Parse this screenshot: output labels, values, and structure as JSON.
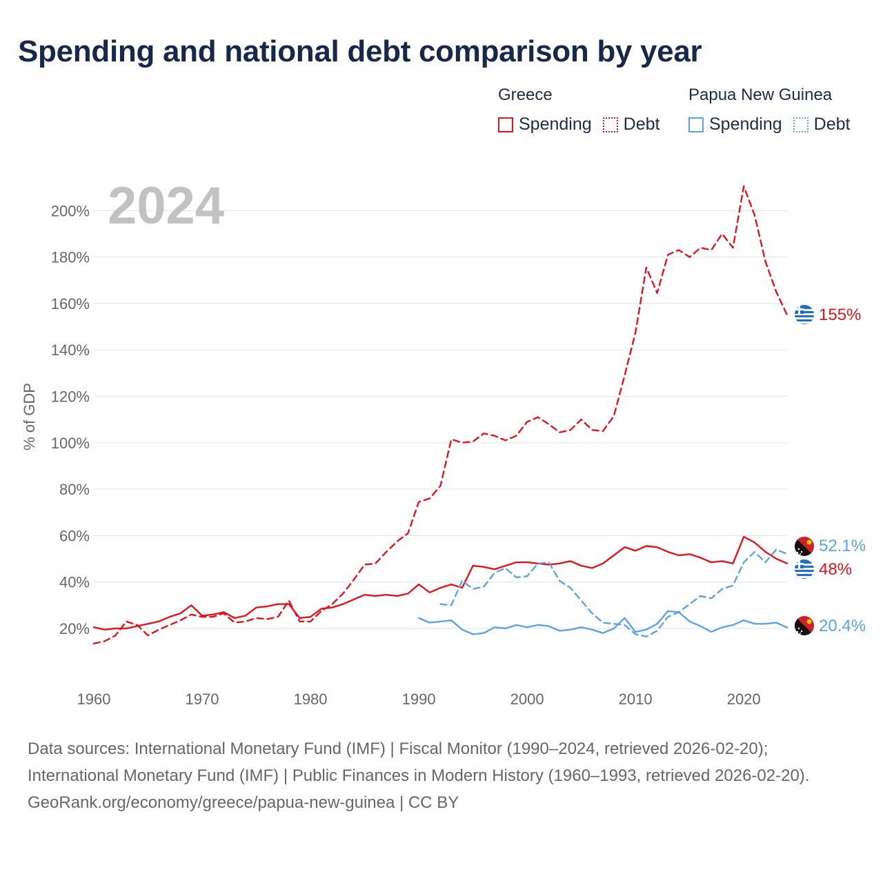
{
  "title": "Spending and national debt comparison by year",
  "legend": {
    "groups": [
      {
        "country": "Greece",
        "color": "#e8111a",
        "items": [
          {
            "label": "Spending",
            "style": "solid"
          },
          {
            "label": "Debt",
            "style": "dotted"
          }
        ]
      },
      {
        "country": "Papua New Guinea",
        "color": "#5aa3e4",
        "items": [
          {
            "label": "Spending",
            "style": "solid"
          },
          {
            "label": "Debt",
            "style": "dotted"
          }
        ]
      }
    ]
  },
  "chart_data": {
    "type": "line",
    "year_label": "2024",
    "ylabel": "% of GDP",
    "xlabel": "",
    "xlim": [
      1960,
      2024
    ],
    "ylim": [
      0,
      220
    ],
    "x_ticks": [
      1960,
      1970,
      1980,
      1990,
      2000,
      2010,
      2020
    ],
    "y_ticks": [
      20,
      40,
      60,
      80,
      100,
      120,
      140,
      160,
      180,
      200
    ],
    "y_tick_format": "%",
    "grid": true,
    "series": [
      {
        "name": "Greece Spending",
        "country": "Greece",
        "metric": "Spending",
        "color": "#e8111a",
        "dash": "solid",
        "end_label": "48%",
        "points": [
          [
            1960,
            20.5
          ],
          [
            1961,
            19.5
          ],
          [
            1962,
            20
          ],
          [
            1963,
            20
          ],
          [
            1964,
            21
          ],
          [
            1965,
            22
          ],
          [
            1966,
            23
          ],
          [
            1967,
            25
          ],
          [
            1968,
            26.5
          ],
          [
            1969,
            30
          ],
          [
            1970,
            25.5
          ],
          [
            1971,
            26
          ],
          [
            1972,
            27
          ],
          [
            1973,
            24.5
          ],
          [
            1974,
            25.5
          ],
          [
            1975,
            29
          ],
          [
            1976,
            29.5
          ],
          [
            1977,
            30.5
          ],
          [
            1978,
            30.5
          ],
          [
            1979,
            24.5
          ],
          [
            1980,
            25
          ],
          [
            1981,
            28.5
          ],
          [
            1982,
            29
          ],
          [
            1983,
            30.5
          ],
          [
            1984,
            32.5
          ],
          [
            1985,
            34.5
          ],
          [
            1986,
            34
          ],
          [
            1987,
            34.5
          ],
          [
            1988,
            34
          ],
          [
            1989,
            35
          ],
          [
            1990,
            39
          ],
          [
            1991,
            35.5
          ],
          [
            1992,
            37.5
          ],
          [
            1993,
            39
          ],
          [
            1994,
            37.5
          ],
          [
            1995,
            47
          ],
          [
            1996,
            46.5
          ],
          [
            1997,
            45.5
          ],
          [
            1998,
            47
          ],
          [
            1999,
            48.5
          ],
          [
            2000,
            48.5
          ],
          [
            2001,
            48
          ],
          [
            2002,
            47.5
          ],
          [
            2003,
            48
          ],
          [
            2004,
            49
          ],
          [
            2005,
            47
          ],
          [
            2006,
            46
          ],
          [
            2007,
            48
          ],
          [
            2008,
            51.5
          ],
          [
            2009,
            55
          ],
          [
            2010,
            53.5
          ],
          [
            2011,
            55.5
          ],
          [
            2012,
            55
          ],
          [
            2013,
            53
          ],
          [
            2014,
            51.5
          ],
          [
            2015,
            52
          ],
          [
            2016,
            50.5
          ],
          [
            2017,
            48.5
          ],
          [
            2018,
            49
          ],
          [
            2019,
            48
          ],
          [
            2020,
            59.5
          ],
          [
            2021,
            57
          ],
          [
            2022,
            53
          ],
          [
            2023,
            50
          ],
          [
            2024,
            48
          ]
        ]
      },
      {
        "name": "Greece Debt",
        "country": "Greece",
        "metric": "Debt",
        "color": "#e8111a",
        "dash": "dashed",
        "end_label": "155%",
        "points": [
          [
            1960,
            13.5
          ],
          [
            1961,
            14.5
          ],
          [
            1962,
            17
          ],
          [
            1963,
            23
          ],
          [
            1964,
            21.5
          ],
          [
            1965,
            17
          ],
          [
            1966,
            19.5
          ],
          [
            1967,
            21.5
          ],
          [
            1968,
            23.5
          ],
          [
            1969,
            26
          ],
          [
            1970,
            25
          ],
          [
            1971,
            25
          ],
          [
            1972,
            26.5
          ],
          [
            1973,
            22.5
          ],
          [
            1974,
            23
          ],
          [
            1975,
            24.5
          ],
          [
            1976,
            24
          ],
          [
            1977,
            25
          ],
          [
            1978,
            32
          ],
          [
            1979,
            23
          ],
          [
            1980,
            23
          ],
          [
            1981,
            27.5
          ],
          [
            1982,
            30.5
          ],
          [
            1983,
            35
          ],
          [
            1984,
            41
          ],
          [
            1985,
            47.5
          ],
          [
            1986,
            48
          ],
          [
            1987,
            53
          ],
          [
            1988,
            57.5
          ],
          [
            1989,
            61
          ],
          [
            1990,
            74.5
          ],
          [
            1991,
            76
          ],
          [
            1992,
            81.5
          ],
          [
            1993,
            101.5
          ],
          [
            1994,
            100
          ],
          [
            1995,
            100.5
          ],
          [
            1996,
            104
          ],
          [
            1997,
            103
          ],
          [
            1998,
            101
          ],
          [
            1999,
            103
          ],
          [
            2000,
            109
          ],
          [
            2001,
            111
          ],
          [
            2002,
            108
          ],
          [
            2003,
            104.5
          ],
          [
            2004,
            105.5
          ],
          [
            2005,
            110
          ],
          [
            2006,
            105.5
          ],
          [
            2007,
            105
          ],
          [
            2008,
            111.5
          ],
          [
            2009,
            129
          ],
          [
            2010,
            147.5
          ],
          [
            2011,
            175.5
          ],
          [
            2012,
            164.5
          ],
          [
            2013,
            181
          ],
          [
            2014,
            183
          ],
          [
            2015,
            180
          ],
          [
            2016,
            184
          ],
          [
            2017,
            183
          ],
          [
            2018,
            190
          ],
          [
            2019,
            184
          ],
          [
            2020,
            210.5
          ],
          [
            2021,
            198
          ],
          [
            2022,
            178
          ],
          [
            2023,
            165
          ],
          [
            2024,
            155
          ]
        ]
      },
      {
        "name": "Papua New Guinea Spending",
        "country": "Papua New Guinea",
        "metric": "Spending",
        "color": "#5aa3e4",
        "dash": "solid",
        "end_label": "20.4%",
        "points": [
          [
            1990,
            24.5
          ],
          [
            1991,
            22.5
          ],
          [
            1992,
            23
          ],
          [
            1993,
            23.5
          ],
          [
            1994,
            19.5
          ],
          [
            1995,
            17.5
          ],
          [
            1996,
            18
          ],
          [
            1997,
            20.5
          ],
          [
            1998,
            20
          ],
          [
            1999,
            21.5
          ],
          [
            2000,
            20.5
          ],
          [
            2001,
            21.5
          ],
          [
            2002,
            21
          ],
          [
            2003,
            19
          ],
          [
            2004,
            19.5
          ],
          [
            2005,
            20.5
          ],
          [
            2006,
            19.5
          ],
          [
            2007,
            18
          ],
          [
            2008,
            20
          ],
          [
            2009,
            24.5
          ],
          [
            2010,
            18.5
          ],
          [
            2011,
            19.5
          ],
          [
            2012,
            22
          ],
          [
            2013,
            27.5
          ],
          [
            2014,
            27
          ],
          [
            2015,
            23
          ],
          [
            2016,
            21
          ],
          [
            2017,
            18.5
          ],
          [
            2018,
            20.5
          ],
          [
            2019,
            21.5
          ],
          [
            2020,
            23.5
          ],
          [
            2021,
            22
          ],
          [
            2022,
            22
          ],
          [
            2023,
            22.5
          ],
          [
            2024,
            20.4
          ]
        ]
      },
      {
        "name": "Papua New Guinea Debt",
        "country": "Papua New Guinea",
        "metric": "Debt",
        "color": "#5aa3e4",
        "dash": "dashed",
        "end_label": "52.1%",
        "points": [
          [
            1992,
            30.5
          ],
          [
            1993,
            30
          ],
          [
            1994,
            40.5
          ],
          [
            1995,
            37
          ],
          [
            1996,
            38
          ],
          [
            1997,
            44
          ],
          [
            1998,
            46
          ],
          [
            1999,
            42
          ],
          [
            2000,
            42.5
          ],
          [
            2001,
            48
          ],
          [
            2002,
            48.5
          ],
          [
            2003,
            40.5
          ],
          [
            2004,
            37.5
          ],
          [
            2005,
            32
          ],
          [
            2006,
            26.5
          ],
          [
            2007,
            22.5
          ],
          [
            2008,
            22
          ],
          [
            2009,
            21.5
          ],
          [
            2010,
            17.5
          ],
          [
            2011,
            16.5
          ],
          [
            2012,
            19
          ],
          [
            2013,
            25
          ],
          [
            2014,
            27
          ],
          [
            2015,
            30.5
          ],
          [
            2016,
            34
          ],
          [
            2017,
            33
          ],
          [
            2018,
            37
          ],
          [
            2019,
            38.5
          ],
          [
            2020,
            48.5
          ],
          [
            2021,
            53
          ],
          [
            2022,
            48.5
          ],
          [
            2023,
            54
          ],
          [
            2024,
            52.1
          ]
        ]
      }
    ]
  },
  "footer": {
    "sources": "Data sources: International Monetary Fund (IMF) | Fiscal Monitor (1990–2024, retrieved 2026-02-20); International Monetary Fund (IMF) | Public Finances in Modern History (1960–1993, retrieved 2026-02-20).",
    "credit": "GeoRank.org/economy/greece/papua-new-guinea | CC BY"
  }
}
